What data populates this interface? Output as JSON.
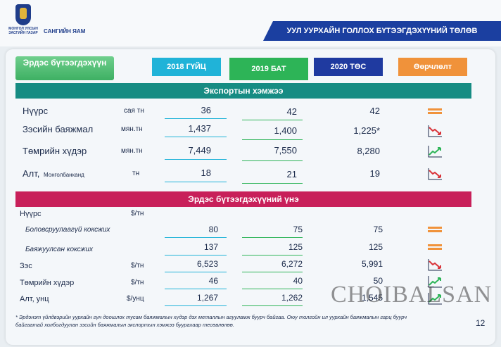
{
  "header": {
    "ministry": "САНГИЙН ЯАМ",
    "logo_text": "МОНГОЛ УЛСЫН ЗАСГИЙН ГАЗАР",
    "title": "УУЛ УУРХАЙН ГОЛЛОХ БҮТЭЭГДЭХҮҮНИЙ ТӨЛӨВ"
  },
  "columns": {
    "mineral": "Эрдэс бүтээгдэхүүн",
    "y2018": "2018 ГҮЙЦ",
    "y2019": "2019 БАТ",
    "y2020": "2020 ТӨС",
    "change": "Өөрчлөлт"
  },
  "export": {
    "title": "Экспортын хэмжээ",
    "rows": [
      {
        "name": "Нүүрс",
        "note": "",
        "unit": "сая тн",
        "y2018": "36",
        "y2019": "42",
        "y2020": "42",
        "trend": "flat"
      },
      {
        "name": "Зэсийн баяжмал",
        "note": "",
        "unit": "мян.тн",
        "y2018": "1,437",
        "y2019": "1,400",
        "y2020": "1,225*",
        "trend": "down"
      },
      {
        "name": "Төмрийн хүдэр",
        "note": "",
        "unit": "мян.тн",
        "y2018": "7,449",
        "y2019": "7,550",
        "y2020": "8,280",
        "trend": "up"
      },
      {
        "name": "Алт,",
        "note": "Монголбанканд",
        "unit": "тн",
        "y2018": "18",
        "y2019": "21",
        "y2020": "19",
        "trend": "down"
      }
    ]
  },
  "prices": {
    "title": "Эрдэс бүтээгдэхүүний үнэ",
    "coal": {
      "name": "Нүүрс",
      "unit": "$/тн"
    },
    "rows": [
      {
        "name": "Боловсруулаагүй коксжих",
        "unit": "",
        "y2018": "80",
        "y2019": "75",
        "y2020": "75",
        "trend": "flat"
      },
      {
        "name": "Баяжуулсан коксжих",
        "unit": "",
        "y2018": "137",
        "y2019": "125",
        "y2020": "125",
        "trend": "flat"
      },
      {
        "name": "Зэс",
        "unit": "$/тн",
        "y2018": "6,523",
        "y2019": "6,272",
        "y2020": "5,991",
        "trend": "down"
      },
      {
        "name": "Төмрийн хүдэр",
        "unit": "$/тн",
        "y2018": "46",
        "y2019": "40",
        "y2020": "50",
        "trend": "up"
      },
      {
        "name": "Алт, унц",
        "unit": "$/унц",
        "y2018": "1,267",
        "y2019": "1,262",
        "y2020": "1,545",
        "trend": "up"
      }
    ]
  },
  "footnote": "* Эрдэнэт үйлдвэрийн уурхайн гүн доошлох тусам баяжмалын хүдэр дэх металлын агууламж буурч байгаа. Оюу толгойн ил уурхайн баяжмалын гарц буурч байгаатай холбогдуулан зэсийн баяжмалын экспортын хэмжээ буурахаар тесөвлөлөө.",
  "page_number": "12",
  "watermark": "CHOIBALSAN",
  "colors": {
    "accent": "#1b3fa0",
    "export_band": "#168c83",
    "price_band": "#c8205a",
    "up": "#2db457",
    "down": "#d9343a",
    "flat": "#f0923a"
  }
}
